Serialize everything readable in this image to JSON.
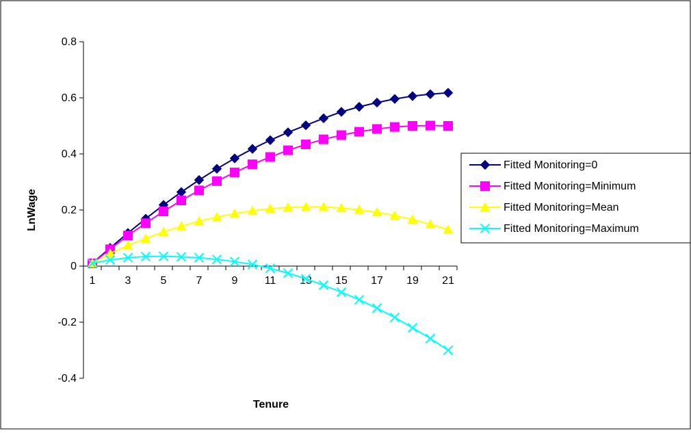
{
  "chart_data": {
    "type": "line",
    "xlabel": "Tenure",
    "ylabel": "LnWage",
    "ylim": [
      -0.4,
      0.8
    ],
    "ytick_step": 0.2,
    "y_ticks": [
      "-0.4",
      "-0.2",
      "0",
      "0.2",
      "0.4",
      "0.6",
      "0.8"
    ],
    "categories": [
      1,
      2,
      3,
      4,
      5,
      6,
      7,
      8,
      9,
      10,
      11,
      12,
      13,
      14,
      15,
      16,
      17,
      18,
      19,
      20,
      21
    ],
    "x_tick_labels": [
      "1",
      "3",
      "5",
      "7",
      "9",
      "11",
      "13",
      "15",
      "17",
      "19",
      "21"
    ],
    "grid": false,
    "legend_position": "right",
    "series": [
      {
        "name": "Fitted Monitoring=0",
        "color": "#000080",
        "marker": "diamond",
        "values": [
          0.01,
          0.065,
          0.118,
          0.169,
          0.218,
          0.264,
          0.307,
          0.347,
          0.384,
          0.418,
          0.449,
          0.477,
          0.502,
          0.527,
          0.55,
          0.568,
          0.583,
          0.596,
          0.606,
          0.613,
          0.618
        ]
      },
      {
        "name": "Fitted Monitoring=Minimum",
        "color": "#FF00FF",
        "marker": "square",
        "values": [
          0.01,
          0.06,
          0.109,
          0.153,
          0.195,
          0.234,
          0.27,
          0.303,
          0.334,
          0.363,
          0.389,
          0.413,
          0.434,
          0.452,
          0.467,
          0.479,
          0.489,
          0.496,
          0.5,
          0.501,
          0.5
        ]
      },
      {
        "name": "Fitted Monitoring=Mean",
        "color": "#FFFF00",
        "marker": "triangle",
        "values": [
          0.01,
          0.045,
          0.074,
          0.098,
          0.122,
          0.142,
          0.16,
          0.175,
          0.187,
          0.197,
          0.205,
          0.209,
          0.211,
          0.211,
          0.207,
          0.201,
          0.192,
          0.18,
          0.166,
          0.149,
          0.13
        ]
      },
      {
        "name": "Fitted Monitoring=Maximum",
        "color": "#00FFFF",
        "marker": "x",
        "values": [
          0.01,
          0.022,
          0.03,
          0.034,
          0.035,
          0.033,
          0.03,
          0.024,
          0.016,
          0.006,
          -0.008,
          -0.025,
          -0.045,
          -0.068,
          -0.093,
          -0.12,
          -0.15,
          -0.183,
          -0.22,
          -0.258,
          -0.3
        ]
      }
    ]
  }
}
